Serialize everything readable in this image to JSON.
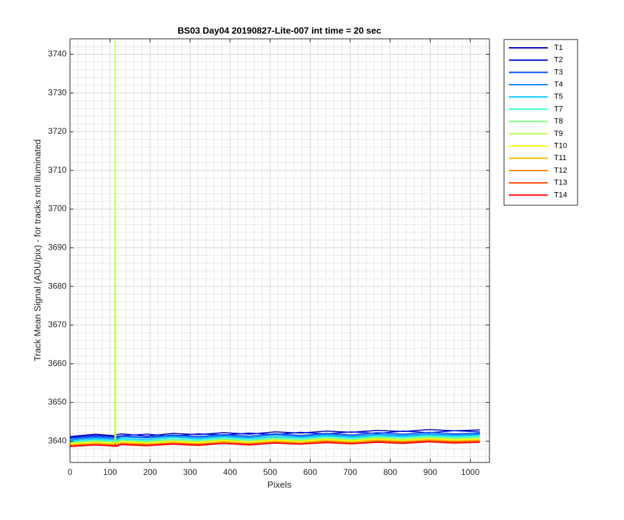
{
  "chart_data": {
    "type": "line",
    "title": "BS03 Day04 20190827-Lite-007 int time = 20 sec",
    "xlabel": "Pixels",
    "ylabel": "Track Mean Signal (ADU/pix) - for tracks not illuminated",
    "x": [
      0,
      64,
      112,
      113,
      114,
      128,
      192,
      256,
      320,
      384,
      448,
      512,
      576,
      640,
      704,
      768,
      832,
      896,
      960,
      1024
    ],
    "xlim": [
      0,
      1048
    ],
    "xticks": [
      0,
      100,
      200,
      300,
      400,
      500,
      600,
      700,
      800,
      900,
      1000
    ],
    "ylim": [
      3634.5,
      3744
    ],
    "yticks": [
      3640,
      3650,
      3660,
      3670,
      3680,
      3690,
      3700,
      3710,
      3720,
      3730,
      3740
    ],
    "grid": true,
    "minor_grid": true,
    "legend": "outside-right",
    "series": [
      {
        "name": "T1",
        "color": "#0000b4",
        "values": [
          3641.2,
          3641.8,
          3641.4,
          3641.0,
          3641.6,
          3641.9,
          3641.3,
          3642.0,
          3641.7,
          3642.2,
          3641.8,
          3642.4,
          3642.1,
          3642.6,
          3642.3,
          3642.8,
          3642.5,
          3643.0,
          3642.7,
          3642.9
        ]
      },
      {
        "name": "T2",
        "color": "#0010d8",
        "values": [
          3641.0,
          3641.5,
          3641.2,
          3641.7,
          3641.1,
          3641.4,
          3641.8,
          3641.3,
          3641.9,
          3641.6,
          3642.1,
          3641.7,
          3642.3,
          3641.9,
          3642.4,
          3642.0,
          3642.6,
          3642.2,
          3642.7,
          3642.4
        ]
      },
      {
        "name": "T3",
        "color": "#0048ff",
        "values": [
          3640.7,
          3641.2,
          3640.9,
          3641.4,
          3640.8,
          3641.3,
          3641.0,
          3641.6,
          3641.2,
          3641.7,
          3641.3,
          3641.9,
          3641.5,
          3642.0,
          3641.6,
          3642.2,
          3641.8,
          3642.3,
          3641.9,
          3642.1
        ]
      },
      {
        "name": "T4",
        "color": "#0088ff",
        "values": [
          3640.4,
          3640.9,
          3640.6,
          3641.0,
          3640.5,
          3641.1,
          3640.8,
          3641.3,
          3640.9,
          3641.4,
          3641.0,
          3641.6,
          3641.2,
          3641.7,
          3641.3,
          3641.8,
          3641.5,
          3641.9,
          3641.6,
          3641.8
        ]
      },
      {
        "name": "T5",
        "color": "#00c8ff",
        "values": [
          3640.1,
          3640.6,
          3640.3,
          3640.8,
          3640.2,
          3640.7,
          3640.4,
          3641.0,
          3640.6,
          3641.1,
          3640.7,
          3641.2,
          3640.9,
          3641.4,
          3641.0,
          3641.5,
          3641.2,
          3641.6,
          3641.3,
          3641.5
        ]
      },
      {
        "name": "T7",
        "color": "#30ffcf",
        "values": [
          3639.8,
          3640.3,
          3640.0,
          3640.5,
          3639.9,
          3640.4,
          3640.1,
          3640.6,
          3640.3,
          3640.8,
          3640.4,
          3640.9,
          3640.6,
          3641.1,
          3640.7,
          3641.2,
          3640.9,
          3641.3,
          3641.0,
          3641.2
        ]
      },
      {
        "name": "T8",
        "color": "#80ff80",
        "values": [
          3639.6,
          3640.0,
          3639.8,
          3640.2,
          3639.7,
          3640.1,
          3639.9,
          3640.3,
          3640.0,
          3640.5,
          3640.1,
          3640.6,
          3640.3,
          3640.8,
          3640.4,
          3640.9,
          3640.6,
          3641.0,
          3640.7,
          3640.9
        ]
      },
      {
        "name": "T9",
        "color": "#b8ff48",
        "values": [
          3639.5,
          3639.9,
          3639.6,
          3746,
          3639.5,
          3640.0,
          3639.7,
          3640.1,
          3639.8,
          3640.3,
          3639.9,
          3640.4,
          3640.1,
          3640.6,
          3640.2,
          3640.7,
          3640.4,
          3640.8,
          3640.5,
          3640.7
        ]
      },
      {
        "name": "T10",
        "color": "#ffff00",
        "values": [
          3639.3,
          3639.7,
          3639.4,
          3639.8,
          3639.3,
          3639.8,
          3639.5,
          3639.9,
          3639.6,
          3640.1,
          3639.7,
          3640.2,
          3639.9,
          3640.4,
          3640.0,
          3640.5,
          3640.2,
          3640.6,
          3640.3,
          3640.5
        ]
      },
      {
        "name": "T11",
        "color": "#ffc000",
        "values": [
          3639.1,
          3639.5,
          3639.2,
          3639.6,
          3639.1,
          3639.6,
          3639.3,
          3639.7,
          3639.4,
          3639.9,
          3639.5,
          3640.0,
          3639.7,
          3640.2,
          3639.8,
          3640.3,
          3640.0,
          3640.4,
          3640.1,
          3640.3
        ]
      },
      {
        "name": "T12",
        "color": "#ff8800",
        "values": [
          3638.9,
          3639.3,
          3639.0,
          3639.4,
          3638.9,
          3639.4,
          3639.1,
          3639.5,
          3639.2,
          3639.7,
          3639.3,
          3639.8,
          3639.5,
          3640.0,
          3639.6,
          3640.1,
          3639.8,
          3640.2,
          3639.9,
          3640.1
        ]
      },
      {
        "name": "T13",
        "color": "#ff4400",
        "values": [
          3638.8,
          3639.1,
          3638.9,
          3639.2,
          3638.8,
          3639.3,
          3639.0,
          3639.4,
          3639.1,
          3639.5,
          3639.2,
          3639.6,
          3639.3,
          3639.8,
          3639.4,
          3639.9,
          3639.6,
          3640.0,
          3639.7,
          3639.9
        ]
      },
      {
        "name": "T14",
        "color": "#ff0000",
        "values": [
          3638.6,
          3639.0,
          3638.7,
          3639.1,
          3638.6,
          3639.1,
          3638.8,
          3639.2,
          3638.9,
          3639.4,
          3639.0,
          3639.5,
          3639.2,
          3639.6,
          3639.3,
          3639.7,
          3639.4,
          3639.8,
          3639.5,
          3639.7
        ]
      }
    ]
  }
}
